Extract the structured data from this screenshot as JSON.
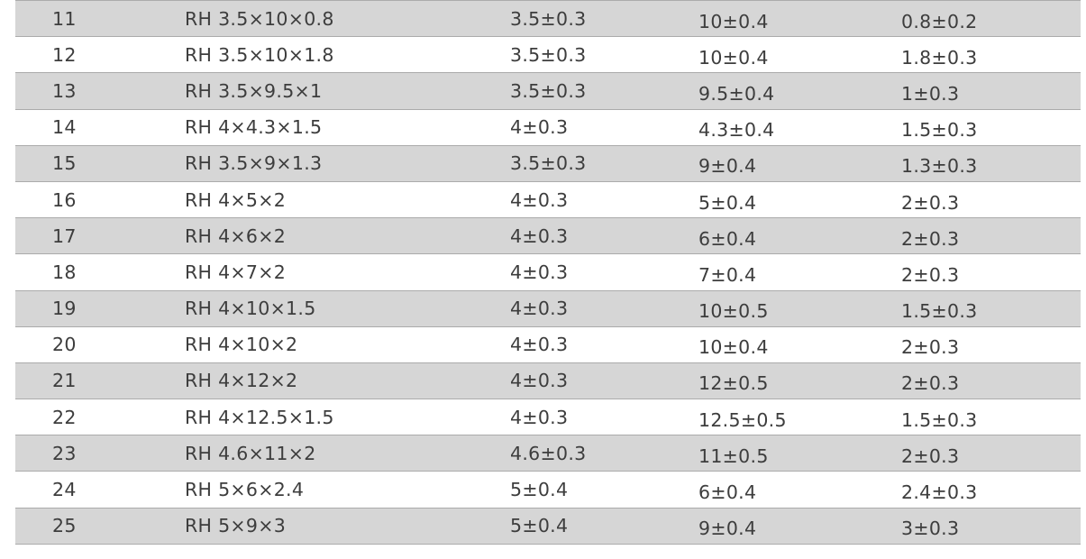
{
  "colors": {
    "row_alt_fill": "#d6d6d6",
    "row_base_fill": "#ffffff",
    "row_border": "#ababab",
    "text": "#3d3d3d"
  },
  "table": {
    "rows": [
      {
        "no": "11",
        "model": "RH 3.5×10×0.8",
        "dim_a": "3.5±0.3",
        "dim_b": "10±0.4",
        "dim_c": "0.8±0.2"
      },
      {
        "no": "12",
        "model": "RH 3.5×10×1.8",
        "dim_a": "3.5±0.3",
        "dim_b": "10±0.4",
        "dim_c": "1.8±0.3"
      },
      {
        "no": "13",
        "model": "RH 3.5×9.5×1",
        "dim_a": "3.5±0.3",
        "dim_b": "9.5±0.4",
        "dim_c": "1±0.3"
      },
      {
        "no": "14",
        "model": "RH 4×4.3×1.5",
        "dim_a": "4±0.3",
        "dim_b": "4.3±0.4",
        "dim_c": "1.5±0.3"
      },
      {
        "no": "15",
        "model": "RH 3.5×9×1.3",
        "dim_a": "3.5±0.3",
        "dim_b": "9±0.4",
        "dim_c": "1.3±0.3"
      },
      {
        "no": "16",
        "model": "RH 4×5×2",
        "dim_a": "4±0.3",
        "dim_b": "5±0.4",
        "dim_c": "2±0.3"
      },
      {
        "no": "17",
        "model": "RH 4×6×2",
        "dim_a": "4±0.3",
        "dim_b": "6±0.4",
        "dim_c": "2±0.3"
      },
      {
        "no": "18",
        "model": "RH 4×7×2",
        "dim_a": "4±0.3",
        "dim_b": "7±0.4",
        "dim_c": "2±0.3"
      },
      {
        "no": "19",
        "model": "RH 4×10×1.5",
        "dim_a": "4±0.3",
        "dim_b": "10±0.5",
        "dim_c": "1.5±0.3"
      },
      {
        "no": "20",
        "model": "RH 4×10×2",
        "dim_a": "4±0.3",
        "dim_b": "10±0.4",
        "dim_c": "2±0.3"
      },
      {
        "no": "21",
        "model": "RH 4×12×2",
        "dim_a": "4±0.3",
        "dim_b": "12±0.5",
        "dim_c": "2±0.3"
      },
      {
        "no": "22",
        "model": "RH 4×12.5×1.5",
        "dim_a": "4±0.3",
        "dim_b": "12.5±0.5",
        "dim_c": "1.5±0.3"
      },
      {
        "no": "23",
        "model": "RH 4.6×11×2",
        "dim_a": "4.6±0.3",
        "dim_b": "11±0.5",
        "dim_c": "2±0.3"
      },
      {
        "no": "24",
        "model": "RH 5×6×2.4",
        "dim_a": "5±0.4",
        "dim_b": "6±0.4",
        "dim_c": "2.4±0.3"
      },
      {
        "no": "25",
        "model": "RH 5×9×3",
        "dim_a": "5±0.4",
        "dim_b": "9±0.4",
        "dim_c": "3±0.3"
      }
    ]
  }
}
